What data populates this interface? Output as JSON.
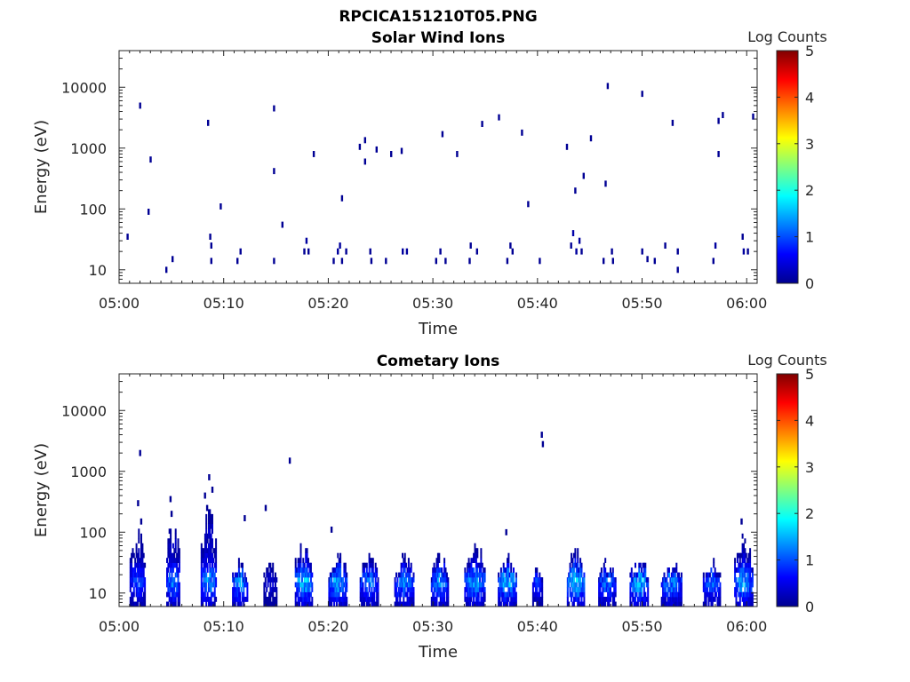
{
  "figure_title": "RPCICA151210T05.PNG",
  "colors": {
    "axis": "#262626",
    "colormap": "jet"
  },
  "chart_data": [
    {
      "type": "heatmap",
      "title": "Solar Wind Ions",
      "xlabel": "Time",
      "ylabel": "Energy (eV)",
      "x_tick_labels": [
        "05:00",
        "05:10",
        "05:20",
        "05:30",
        "05:40",
        "05:50",
        "06:00"
      ],
      "xlim": [
        "05:00",
        "06:01"
      ],
      "y_tick_labels": [
        "10",
        "100",
        "1000",
        "10000"
      ],
      "yscale": "log",
      "ylim": [
        6,
        40000
      ],
      "colorbar": {
        "label": "Log Counts",
        "ticks": [
          "0",
          "1",
          "2",
          "3",
          "4",
          "5"
        ],
        "range": [
          0,
          5
        ]
      },
      "points": [
        [
          "05:00.8",
          35,
          0.1
        ],
        [
          "05:02.0",
          5000,
          0.1
        ],
        [
          "05:02.8",
          90,
          0.1
        ],
        [
          "05:03.0",
          650,
          0.1
        ],
        [
          "05:04.5",
          10,
          0.1
        ],
        [
          "05:05.1",
          15,
          0.1
        ],
        [
          "05:08.5",
          2600,
          0.1
        ],
        [
          "05:08.7",
          35,
          0.1
        ],
        [
          "05:08.8",
          25,
          0.1
        ],
        [
          "05:08.8",
          14,
          0.1
        ],
        [
          "05:09.7",
          110,
          0.1
        ],
        [
          "05:11.3",
          14,
          0.1
        ],
        [
          "05:11.6",
          20,
          0.1
        ],
        [
          "05:14.8",
          4500,
          0.1
        ],
        [
          "05:14.8",
          420,
          0.1
        ],
        [
          "05:14.8",
          14,
          0.1
        ],
        [
          "05:15.6",
          55,
          0.1
        ],
        [
          "05:17.7",
          20,
          0.1
        ],
        [
          "05:17.9",
          30,
          0.15
        ],
        [
          "05:18.1",
          20,
          0.1
        ],
        [
          "05:18.6",
          800,
          0.1
        ],
        [
          "05:20.5",
          14,
          0.1
        ],
        [
          "05:20.9",
          20,
          0.15
        ],
        [
          "05:21.1",
          25,
          0.15
        ],
        [
          "05:21.3",
          150,
          0.1
        ],
        [
          "05:21.3",
          14,
          0.1
        ],
        [
          "05:21.7",
          20,
          0.1
        ],
        [
          "05:23.0",
          1050,
          0.1
        ],
        [
          "05:23.5",
          1350,
          0.1
        ],
        [
          "05:23.5",
          600,
          0.1
        ],
        [
          "05:24.0",
          20,
          0.1
        ],
        [
          "05:24.1",
          14,
          0.1
        ],
        [
          "05:24.6",
          950,
          0.1
        ],
        [
          "05:25.5",
          14,
          0.1
        ],
        [
          "05:26.0",
          800,
          0.1
        ],
        [
          "05:27.0",
          900,
          0.1
        ],
        [
          "05:27.1",
          20,
          0.15
        ],
        [
          "05:27.5",
          20,
          0.15
        ],
        [
          "05:30.3",
          14,
          0.1
        ],
        [
          "05:30.7",
          20,
          0.1
        ],
        [
          "05:30.9",
          1700,
          0.1
        ],
        [
          "05:31.2",
          14,
          0.1
        ],
        [
          "05:32.3",
          800,
          0.1
        ],
        [
          "05:33.5",
          14,
          0.1
        ],
        [
          "05:33.6",
          25,
          0.1
        ],
        [
          "05:34.2",
          20,
          0.1
        ],
        [
          "05:34.7",
          2500,
          0.1
        ],
        [
          "05:36.3",
          3200,
          0.1
        ],
        [
          "05:37.1",
          14,
          0.1
        ],
        [
          "05:37.4",
          25,
          0.1
        ],
        [
          "05:37.6",
          20,
          0.1
        ],
        [
          "05:38.5",
          1800,
          0.1
        ],
        [
          "05:39.1",
          120,
          0.1
        ],
        [
          "05:40.2",
          14,
          0.1
        ],
        [
          "05:42.8",
          1050,
          0.1
        ],
        [
          "05:43.2",
          25,
          0.1
        ],
        [
          "05:43.4",
          40,
          0.2
        ],
        [
          "05:43.6",
          200,
          0.1
        ],
        [
          "05:43.7",
          20,
          0.15
        ],
        [
          "05:44.0",
          30,
          0.15
        ],
        [
          "05:44.2",
          20,
          0.1
        ],
        [
          "05:44.4",
          350,
          0.1
        ],
        [
          "05:45.1",
          1450,
          0.1
        ],
        [
          "05:46.3",
          14,
          0.1
        ],
        [
          "05:46.5",
          260,
          0.1
        ],
        [
          "05:46.7",
          10500,
          0.1
        ],
        [
          "05:47.1",
          20,
          0.1
        ],
        [
          "05:47.2",
          14,
          0.1
        ],
        [
          "05:50.0",
          7800,
          0.1
        ],
        [
          "05:50.0",
          20,
          0.1
        ],
        [
          "05:50.5",
          15,
          0.1
        ],
        [
          "05:51.2",
          14,
          0.1
        ],
        [
          "05:52.2",
          25,
          0.1
        ],
        [
          "05:52.9",
          2600,
          0.1
        ],
        [
          "05:53.4",
          20,
          0.1
        ],
        [
          "05:53.4",
          10,
          0.1
        ],
        [
          "05:56.8",
          14,
          0.1
        ],
        [
          "05:57.0",
          25,
          0.15
        ],
        [
          "05:57.3",
          2800,
          0.1
        ],
        [
          "05:57.3",
          800,
          0.1
        ],
        [
          "05:57.7",
          3500,
          0.1
        ],
        [
          "05:59.6",
          35,
          0.1
        ],
        [
          "05:59.7",
          20,
          0.15
        ],
        [
          "06:00.1",
          20,
          0.1
        ],
        [
          "06:00.6",
          3300,
          0.1
        ]
      ]
    },
    {
      "type": "heatmap",
      "title": "Cometary Ions",
      "xlabel": "Time",
      "ylabel": "Energy (eV)",
      "x_tick_labels": [
        "05:00",
        "05:10",
        "05:20",
        "05:30",
        "05:40",
        "05:50",
        "06:00"
      ],
      "xlim": [
        "05:00",
        "06:01"
      ],
      "y_tick_labels": [
        "10",
        "100",
        "1000",
        "10000"
      ],
      "yscale": "log",
      "ylim": [
        6,
        40000
      ],
      "colorbar": {
        "label": "Log Counts",
        "ticks": [
          "0",
          "1",
          "2",
          "3",
          "4",
          "5"
        ],
        "range": [
          0,
          5
        ]
      },
      "points": [
        [
          "05:02.0",
          2000,
          0.1
        ],
        [
          "05:01.8",
          300,
          0.1
        ],
        [
          "05:02.1",
          150,
          0.1
        ],
        [
          "05:04.9",
          350,
          0.1
        ],
        [
          "05:05.0",
          200,
          0.1
        ],
        [
          "05:08.2",
          400,
          0.1
        ],
        [
          "05:08.6",
          800,
          0.1
        ],
        [
          "05:08.9",
          500,
          0.1
        ],
        [
          "05:08.4",
          250,
          0.1
        ],
        [
          "05:12.0",
          170,
          0.1
        ],
        [
          "05:14.0",
          250,
          0.1
        ],
        [
          "05:16.3",
          1500,
          0.1
        ],
        [
          "05:20.3",
          110,
          0.1
        ],
        [
          "05:37.0",
          100,
          0.1
        ],
        [
          "05:40.4",
          4000,
          0.1
        ],
        [
          "05:40.5",
          2800,
          0.1
        ],
        [
          "05:59.5",
          150,
          0.1
        ]
      ],
      "bursts": [
        {
          "start": "05:01.0",
          "end": "05:02.5",
          "top": 120,
          "peak": 1.2
        },
        {
          "start": "05:04.5",
          "end": "05:05.8",
          "top": 180,
          "peak": 1.6
        },
        {
          "start": "05:07.8",
          "end": "05:09.3",
          "top": 300,
          "peak": 1.8
        },
        {
          "start": "05:10.8",
          "end": "05:12.3",
          "top": 35,
          "peak": 1.7
        },
        {
          "start": "05:13.8",
          "end": "05:15.1",
          "top": 35,
          "peak": 0.6
        },
        {
          "start": "05:16.8",
          "end": "05:18.5",
          "top": 80,
          "peak": 2.0
        },
        {
          "start": "05:20.0",
          "end": "05:21.8",
          "top": 45,
          "peak": 1.8
        },
        {
          "start": "05:23.0",
          "end": "05:24.8",
          "top": 45,
          "peak": 1.5
        },
        {
          "start": "05:26.3",
          "end": "05:28.2",
          "top": 45,
          "peak": 1.6
        },
        {
          "start": "05:29.8",
          "end": "05:31.5",
          "top": 45,
          "peak": 1.7
        },
        {
          "start": "05:33.0",
          "end": "05:35.0",
          "top": 75,
          "peak": 1.8
        },
        {
          "start": "05:36.2",
          "end": "05:38.0",
          "top": 45,
          "peak": 1.9
        },
        {
          "start": "05:39.5",
          "end": "05:40.5",
          "top": 30,
          "peak": 1.1
        },
        {
          "start": "05:42.8",
          "end": "05:44.5",
          "top": 55,
          "peak": 2.2
        },
        {
          "start": "05:45.8",
          "end": "05:47.5",
          "top": 35,
          "peak": 1.5
        },
        {
          "start": "05:48.8",
          "end": "05:50.6",
          "top": 40,
          "peak": 2.0
        },
        {
          "start": "05:51.8",
          "end": "05:53.8",
          "top": 35,
          "peak": 1.6
        },
        {
          "start": "05:55.8",
          "end": "05:57.5",
          "top": 40,
          "peak": 1.4
        },
        {
          "start": "05:58.8",
          "end": "06:00.6",
          "top": 100,
          "peak": 1.8
        }
      ]
    }
  ]
}
